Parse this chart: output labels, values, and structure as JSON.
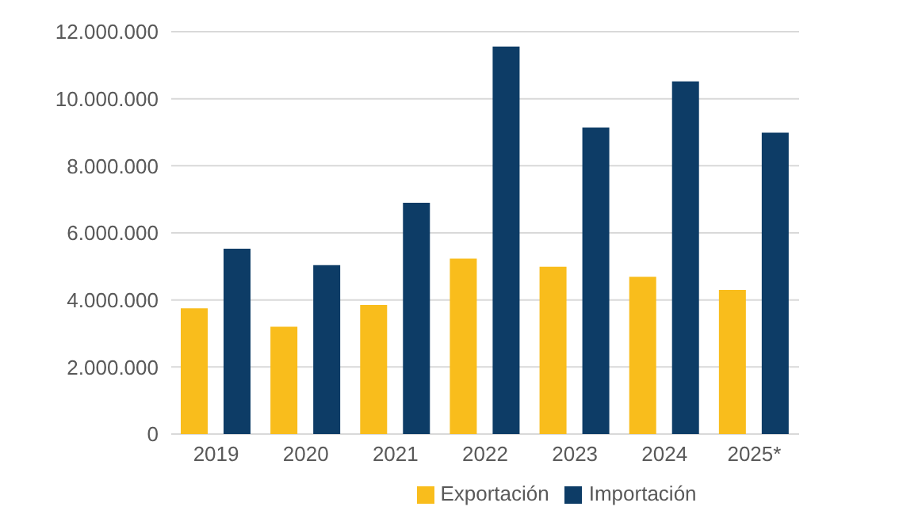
{
  "chart_data": {
    "type": "bar",
    "categories": [
      "2019",
      "2020",
      "2021",
      "2022",
      "2023",
      "2024",
      "2025*"
    ],
    "series": [
      {
        "name": "Exportación",
        "color": "#f9bd1c",
        "values": [
          3750000,
          3200000,
          3850000,
          5230000,
          4990000,
          4690000,
          4300000
        ]
      },
      {
        "name": "Importación",
        "color": "#0d3c66",
        "values": [
          5530000,
          5040000,
          6900000,
          11560000,
          9140000,
          10520000,
          8990000
        ]
      }
    ],
    "ylim": [
      0,
      12000000
    ],
    "yticks": [
      {
        "value": 0,
        "label": "0"
      },
      {
        "value": 2000000,
        "label": "2.000.000"
      },
      {
        "value": 4000000,
        "label": "4.000.000"
      },
      {
        "value": 6000000,
        "label": "6.000.000"
      },
      {
        "value": 8000000,
        "label": "8.000.000"
      },
      {
        "value": 10000000,
        "label": "10.000.000"
      },
      {
        "value": 12000000,
        "label": "12.000.000"
      }
    ],
    "grid": "y",
    "legend": "bottom"
  }
}
